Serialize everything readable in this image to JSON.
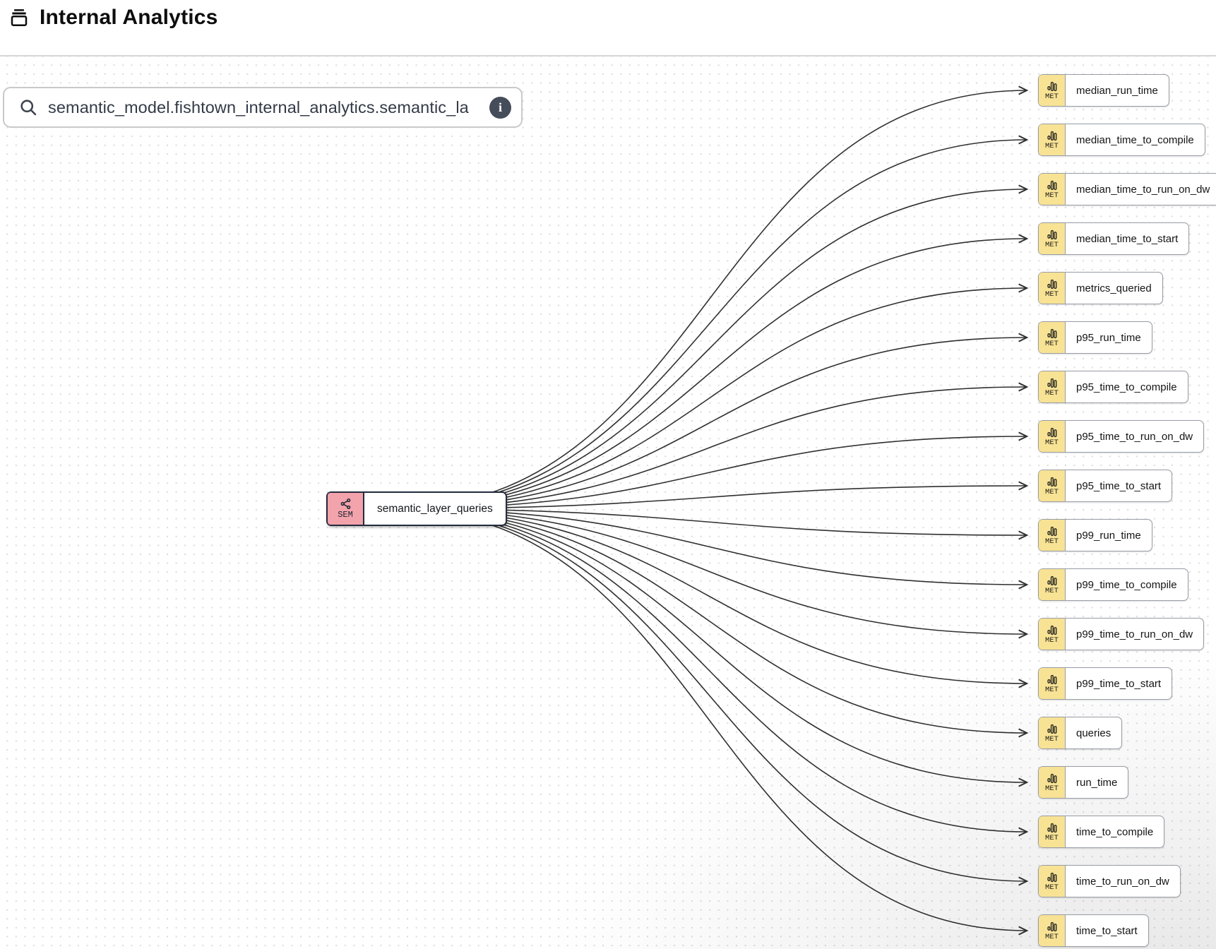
{
  "header": {
    "title": "Internal Analytics"
  },
  "search": {
    "value": "semantic_model.fishtown_internal_analytics.semantic_la",
    "info_glyph": "i"
  },
  "graph": {
    "source": {
      "badge": "SEM",
      "label": "semantic_layer_queries"
    },
    "metric_badge_label": "MET",
    "metrics": [
      "median_run_time",
      "median_time_to_compile",
      "median_time_to_run_on_dw",
      "median_time_to_start",
      "metrics_queried",
      "p95_run_time",
      "p95_time_to_compile",
      "p95_time_to_run_on_dw",
      "p95_time_to_start",
      "p99_run_time",
      "p99_time_to_compile",
      "p99_time_to_run_on_dw",
      "p99_time_to_start",
      "queries",
      "run_time",
      "time_to_compile",
      "time_to_run_on_dw",
      "time_to_start"
    ],
    "colors": {
      "semantic_badge": "#F2A3AC",
      "metric_badge": "#F8E294",
      "edge": "#303030",
      "semantic_border": "#232b3c",
      "metric_border": "#989da5"
    }
  }
}
